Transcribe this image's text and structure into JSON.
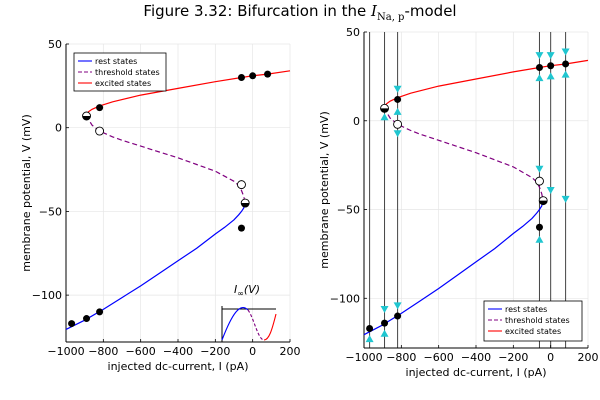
{
  "figure": {
    "title_prefix": "Figure 3.32: Bifurcation in the ",
    "title_math_base": "I",
    "title_math_sub": "Na, p",
    "title_suffix": "-model"
  },
  "colors": {
    "rest": "#0000ff",
    "threshold": "#800080",
    "excited": "#ff0000",
    "arrow": "#20c6d0",
    "vline": "#444444",
    "grid": "#e6e6e6"
  },
  "chart_data": [
    {
      "type": "line",
      "xlabel": "injected dc-current, I (pA)",
      "ylabel": "membrane potential, V (mV)",
      "xlim": [
        -1000,
        200
      ],
      "ylim": [
        -128,
        50
      ],
      "xticks": [
        -1000,
        -800,
        -600,
        -400,
        -200,
        0,
        200
      ],
      "xtick_labels": [
        "−1000",
        "−800",
        "−600",
        "−400",
        "−200",
        "0",
        "200"
      ],
      "yticks": [
        -100,
        -50,
        0,
        50
      ],
      "ytick_labels": [
        "−100",
        "−50",
        "0",
        "50"
      ],
      "grid": true,
      "legend": "top-left",
      "legend_entries": [
        "rest states",
        "threshold states",
        "excited states"
      ],
      "series": [
        {
          "name": "rest states",
          "style": "solid",
          "x": [
            -1000,
            -900,
            -800,
            -700,
            -600,
            -500,
            -400,
            -300,
            -200,
            -150,
            -100,
            -75,
            -60,
            -48,
            -40
          ],
          "y": [
            -120.5,
            -115,
            -108.5,
            -101.5,
            -94.5,
            -87,
            -79.5,
            -72,
            -63.5,
            -59.5,
            -55,
            -52,
            -50,
            -48,
            -45
          ]
        },
        {
          "name": "threshold states",
          "style": "dashed",
          "x": [
            -890,
            -880,
            -860,
            -820,
            -750,
            -700,
            -600,
            -500,
            -400,
            -300,
            -200,
            -100,
            -75,
            -60,
            -48,
            -40
          ],
          "y": [
            7.5,
            5,
            1.5,
            -2,
            -5.5,
            -7.5,
            -11,
            -14.5,
            -18,
            -22,
            -26,
            -32,
            -34.5,
            -37.5,
            -41,
            -45
          ]
        },
        {
          "name": "excited states",
          "style": "solid",
          "x": [
            -890,
            -880,
            -860,
            -820,
            -750,
            -600,
            -400,
            -200,
            -60,
            0,
            80,
            200
          ],
          "y": [
            7.5,
            9.5,
            11,
            13,
            15.5,
            19.5,
            23.5,
            27.5,
            30,
            31,
            32,
            34
          ]
        }
      ],
      "filled_points": [
        {
          "x": -970,
          "y": -117
        },
        {
          "x": -890,
          "y": -114
        },
        {
          "x": -820,
          "y": -110
        },
        {
          "x": -60,
          "y": -60
        },
        {
          "x": -820,
          "y": 12
        },
        {
          "x": -60,
          "y": 30
        },
        {
          "x": 0,
          "y": 31
        },
        {
          "x": 80,
          "y": 32
        }
      ],
      "open_points": [
        {
          "x": -820,
          "y": -2
        },
        {
          "x": -60,
          "y": -34
        }
      ],
      "half_points": [
        {
          "x": -890,
          "y": 7
        },
        {
          "x": -40,
          "y": -45
        }
      ],
      "inset": {
        "label_base": "I",
        "label_sub": "∞",
        "label_arg": "(V)"
      }
    },
    {
      "type": "line",
      "xlabel": "injected dc-current, I (pA)",
      "ylabel": "membrane potential, V (mV)",
      "xlim": [
        -1000,
        200
      ],
      "ylim": [
        -128,
        50
      ],
      "xticks": [
        -1000,
        -800,
        -600,
        -400,
        -200,
        0,
        200
      ],
      "xtick_labels": [
        "−1000",
        "−800",
        "−600",
        "−400",
        "−200",
        "0",
        "200"
      ],
      "yticks": [
        -100,
        -50,
        0,
        50
      ],
      "ytick_labels": [
        "−100",
        "−50",
        "0",
        "50"
      ],
      "grid": true,
      "legend": "bottom-right",
      "legend_entries": [
        "rest states",
        "threshold states",
        "excited states"
      ],
      "vertical_lines_x": [
        -970,
        -890,
        -820,
        -60,
        0,
        80
      ],
      "arrows": [
        {
          "x": -970,
          "y": -123,
          "dir": "up"
        },
        {
          "x": -890,
          "y": -120,
          "dir": "up"
        },
        {
          "x": -890,
          "y": -106,
          "dir": "down"
        },
        {
          "x": -820,
          "y": -104,
          "dir": "down"
        },
        {
          "x": -890,
          "y": 2,
          "dir": "up"
        },
        {
          "x": -820,
          "y": 18,
          "dir": "down"
        },
        {
          "x": -820,
          "y": 5,
          "dir": "up"
        },
        {
          "x": -820,
          "y": -7,
          "dir": "down"
        },
        {
          "x": -60,
          "y": 37,
          "dir": "down"
        },
        {
          "x": -60,
          "y": 24,
          "dir": "up"
        },
        {
          "x": 0,
          "y": 37,
          "dir": "down"
        },
        {
          "x": 0,
          "y": 25,
          "dir": "up"
        },
        {
          "x": 80,
          "y": 39,
          "dir": "down"
        },
        {
          "x": 80,
          "y": 26,
          "dir": "up"
        },
        {
          "x": -60,
          "y": -27,
          "dir": "down"
        },
        {
          "x": -60,
          "y": -67,
          "dir": "up"
        },
        {
          "x": 0,
          "y": -39,
          "dir": "down"
        },
        {
          "x": 80,
          "y": -44,
          "dir": "down"
        }
      ],
      "series": [
        {
          "name": "rest states",
          "style": "solid",
          "x": [
            -1000,
            -900,
            -800,
            -700,
            -600,
            -500,
            -400,
            -300,
            -200,
            -150,
            -100,
            -75,
            -60,
            -48,
            -40
          ],
          "y": [
            -120.5,
            -115,
            -108.5,
            -101.5,
            -94.5,
            -87,
            -79.5,
            -72,
            -63.5,
            -59.5,
            -55,
            -52,
            -50,
            -48,
            -45
          ]
        },
        {
          "name": "threshold states",
          "style": "dashed",
          "x": [
            -890,
            -880,
            -860,
            -820,
            -750,
            -700,
            -600,
            -500,
            -400,
            -300,
            -200,
            -100,
            -75,
            -60,
            -48,
            -40
          ],
          "y": [
            7.5,
            5,
            1.5,
            -2,
            -5.5,
            -7.5,
            -11,
            -14.5,
            -18,
            -22,
            -26,
            -32,
            -34.5,
            -37.5,
            -41,
            -45
          ]
        },
        {
          "name": "excited states",
          "style": "solid",
          "x": [
            -890,
            -880,
            -860,
            -820,
            -750,
            -600,
            -400,
            -200,
            -60,
            0,
            80,
            200
          ],
          "y": [
            7.5,
            9.5,
            11,
            13,
            15.5,
            19.5,
            23.5,
            27.5,
            30,
            31,
            32,
            34
          ]
        }
      ],
      "filled_points": [
        {
          "x": -970,
          "y": -117
        },
        {
          "x": -890,
          "y": -114
        },
        {
          "x": -820,
          "y": -110
        },
        {
          "x": -60,
          "y": -60
        },
        {
          "x": -820,
          "y": 12
        },
        {
          "x": -60,
          "y": 30
        },
        {
          "x": 0,
          "y": 31
        },
        {
          "x": 80,
          "y": 32
        }
      ],
      "open_points": [
        {
          "x": -820,
          "y": -2
        },
        {
          "x": -60,
          "y": -34
        }
      ],
      "half_points": [
        {
          "x": -890,
          "y": 7
        },
        {
          "x": -40,
          "y": -45
        }
      ]
    }
  ]
}
